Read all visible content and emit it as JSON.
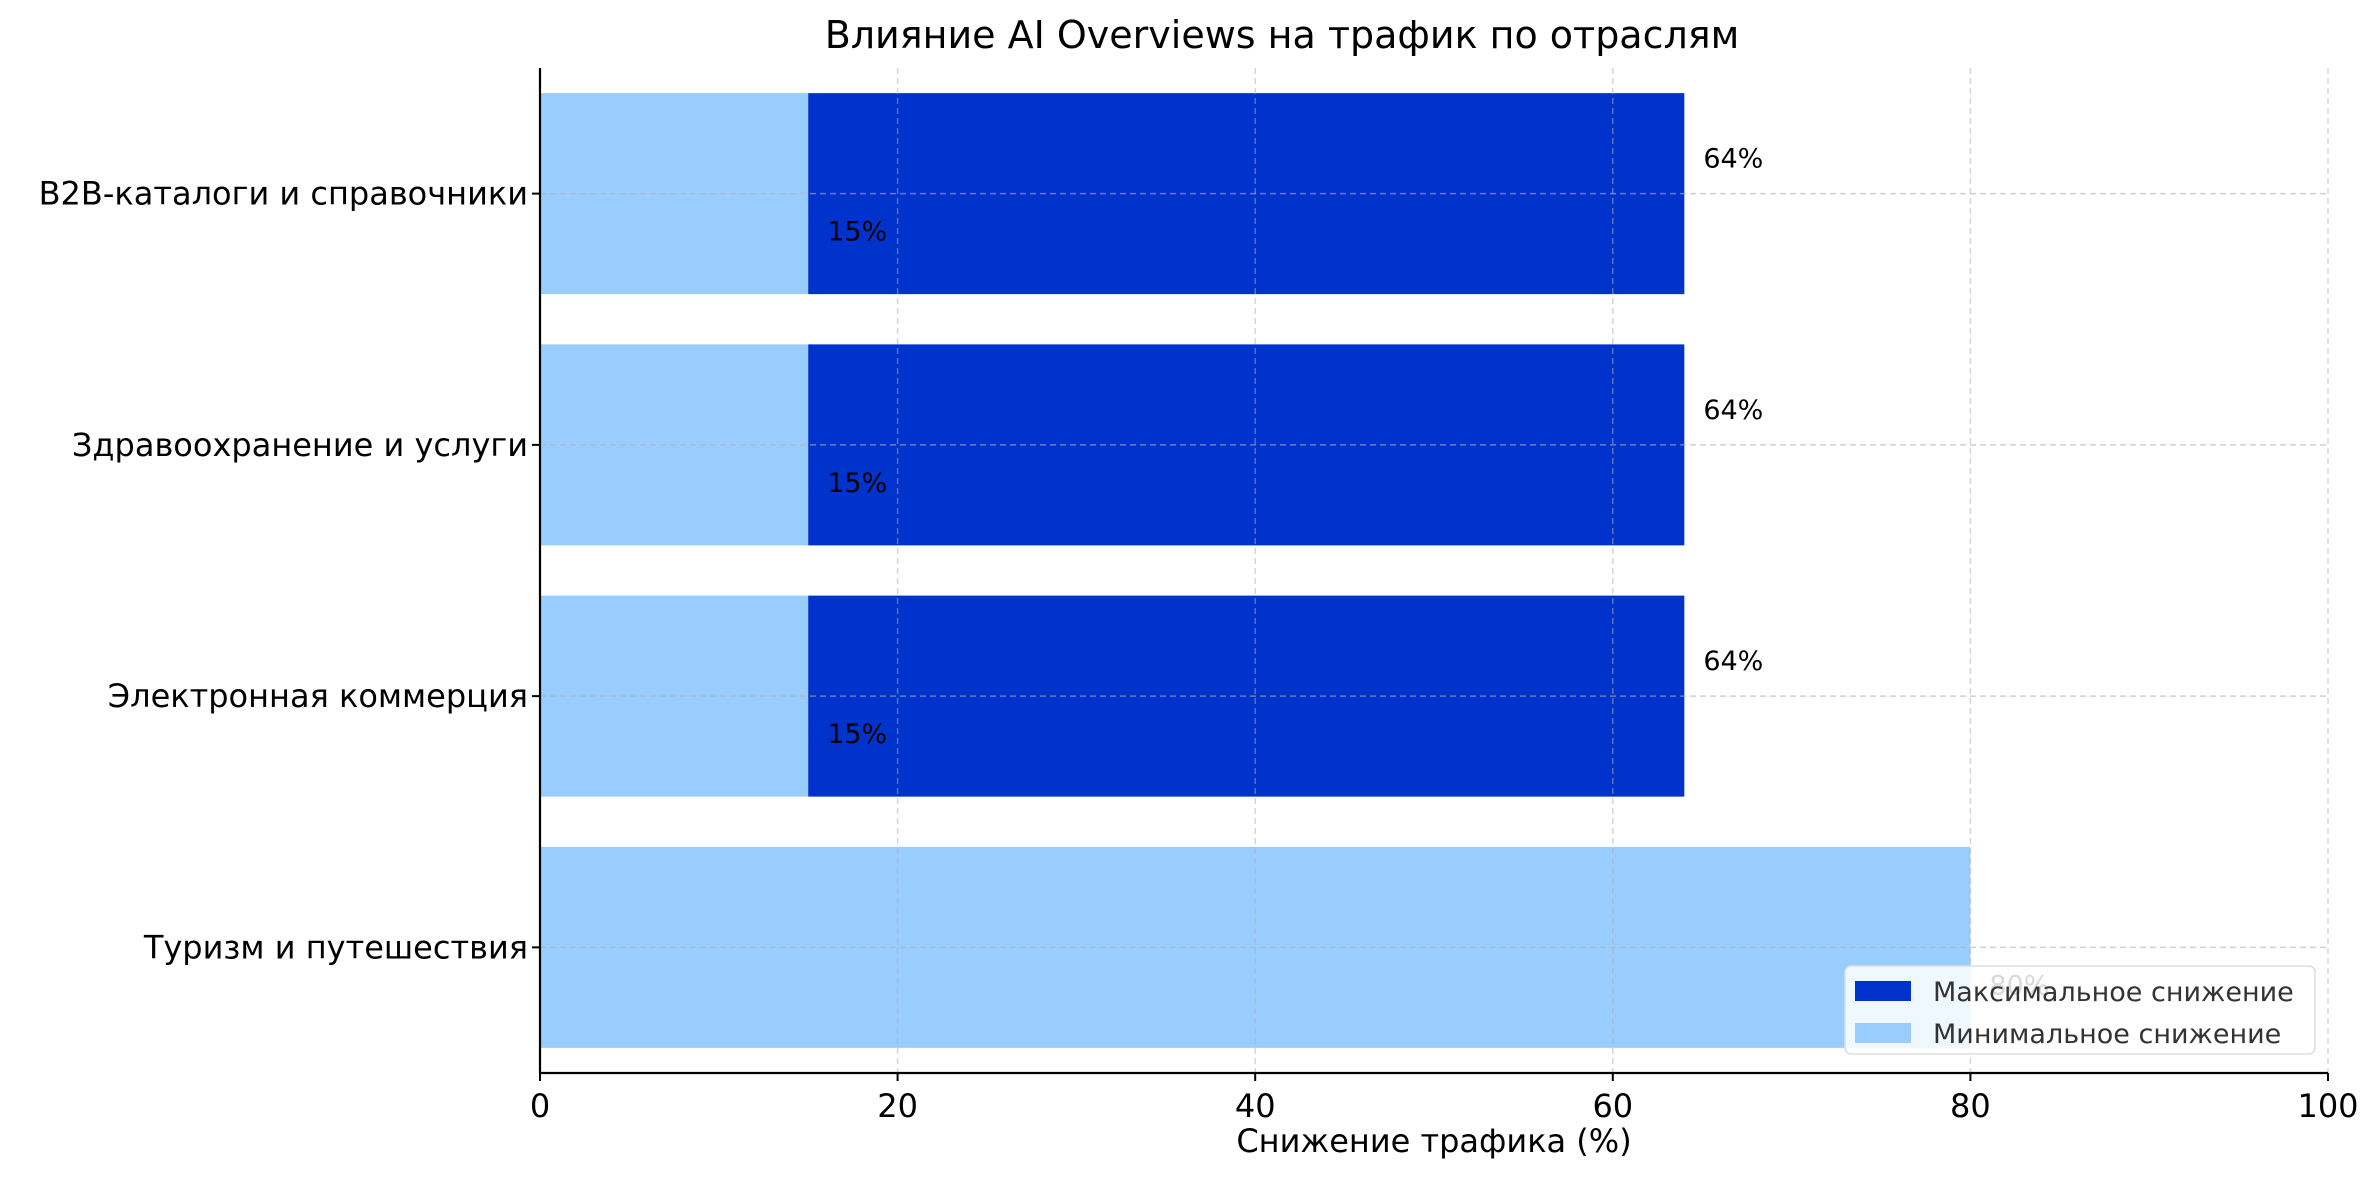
{
  "chart_data": {
    "type": "bar",
    "orientation": "horizontal",
    "stacked": false,
    "title": "Влияние AI Overviews на трафик по отраслям",
    "xlabel": "Снижение трафика (%)",
    "ylabel": "",
    "xlim": [
      0,
      100
    ],
    "xticks": [
      0,
      20,
      40,
      60,
      80,
      100
    ],
    "grid": true,
    "legend_position": "lower-right",
    "categories": [
      "B2B-каталоги и справочники",
      "Здравоохранение и услуги",
      "Электронная коммерция",
      "Туризм и путешествия"
    ],
    "series": [
      {
        "name": "Максимальное снижение",
        "color": "#0033cc",
        "values": [
          64,
          64,
          64,
          null
        ],
        "labels": [
          "64%",
          "64%",
          "64%",
          ""
        ]
      },
      {
        "name": "Минимальное снижение",
        "color": "#99ccff",
        "values": [
          15,
          15,
          15,
          80
        ],
        "labels": [
          "15%",
          "15%",
          "15%",
          "80%"
        ]
      }
    ]
  }
}
